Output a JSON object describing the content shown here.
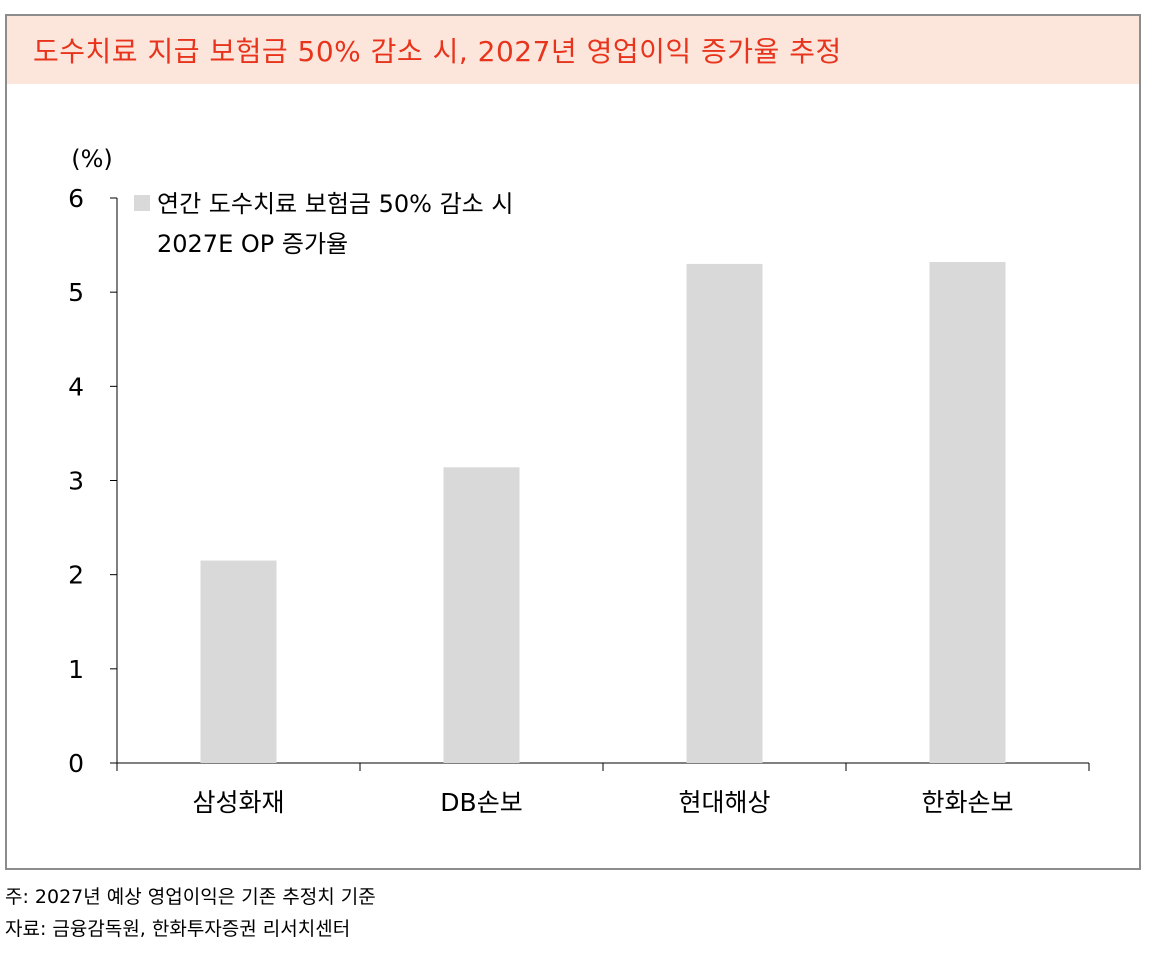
{
  "title": "도수치료 지급 보험금 50% 감소 시, 2027년 영업이익 증가율 추정",
  "notes": {
    "note": "주: 2027년 예상 영업이익은 기존 추정치 기준",
    "source": "자료: 금융감독원, 한화투자증권 리서치센터"
  },
  "colors": {
    "title_text": "#e8341c",
    "title_background": "#fce6dc",
    "bar": "#d9d9d9",
    "frame": "#8c8c8c"
  },
  "chart_data": {
    "type": "bar",
    "unit_label": "(%)",
    "categories": [
      "삼성화재",
      "DB손보",
      "현대해상",
      "한화손보"
    ],
    "series": [
      {
        "name_lines": [
          "연간 도수치료 보험금 50% 감소 시",
          "2027E OP 증가율"
        ],
        "values": [
          2.15,
          3.14,
          5.3,
          5.32
        ]
      }
    ],
    "ylim": [
      0,
      6
    ],
    "yticks": [
      0,
      1,
      2,
      3,
      4,
      5,
      6
    ],
    "grid": false,
    "legend_position": "top-left"
  }
}
